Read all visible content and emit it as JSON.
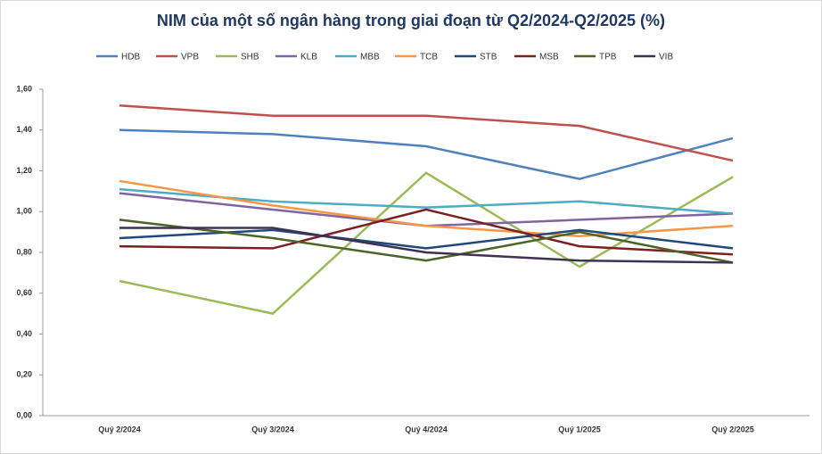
{
  "chart_data": {
    "type": "line",
    "title": "NIM của một số ngân hàng trong giai đoạn từ Q2/2024-Q2/2025 (%)",
    "categories": [
      "Quý 2/2024",
      "Quý 3/2024",
      "Quý 4/2024",
      "Quý 1/2025",
      "Quý 2/2025"
    ],
    "series": [
      {
        "name": "HDB",
        "color": "#4f81bd",
        "values": [
          1.4,
          1.38,
          1.32,
          1.16,
          1.36
        ]
      },
      {
        "name": "VPB",
        "color": "#c0504d",
        "values": [
          1.52,
          1.47,
          1.47,
          1.42,
          1.25
        ]
      },
      {
        "name": "SHB",
        "color": "#9bbb59",
        "values": [
          0.66,
          0.5,
          1.19,
          0.73,
          1.17
        ]
      },
      {
        "name": "KLB",
        "color": "#8064a2",
        "values": [
          1.09,
          1.01,
          0.93,
          0.96,
          0.99
        ]
      },
      {
        "name": "MBB",
        "color": "#4bacc6",
        "values": [
          1.11,
          1.05,
          1.02,
          1.05,
          0.99
        ]
      },
      {
        "name": "TCB",
        "color": "#f79646",
        "values": [
          1.15,
          1.03,
          0.93,
          0.88,
          0.93
        ]
      },
      {
        "name": "STB",
        "color": "#1f497d",
        "values": [
          0.87,
          0.91,
          0.82,
          0.91,
          0.82
        ]
      },
      {
        "name": "MSB",
        "color": "#7b2020",
        "values": [
          0.83,
          0.82,
          1.01,
          0.83,
          0.79
        ]
      },
      {
        "name": "TPB",
        "color": "#4f6228",
        "values": [
          0.96,
          0.87,
          0.76,
          0.9,
          0.75
        ]
      },
      {
        "name": "VIB",
        "color": "#3f3151",
        "values": [
          0.92,
          0.92,
          0.8,
          0.76,
          0.75
        ]
      }
    ],
    "ylim": [
      0,
      1.6
    ],
    "yticks": [
      {
        "value": 0,
        "label": "0,00"
      },
      {
        "value": 0.2,
        "label": "0,20"
      },
      {
        "value": 0.4,
        "label": "0,40"
      },
      {
        "value": 0.6,
        "label": "0,60"
      },
      {
        "value": 0.8,
        "label": "0,80"
      },
      {
        "value": 1.0,
        "label": "1,00"
      },
      {
        "value": 1.2,
        "label": "1,20"
      },
      {
        "value": 1.4,
        "label": "1,40"
      },
      {
        "value": 1.6,
        "label": "1,60"
      }
    ],
    "grid": false,
    "legend": "top"
  }
}
